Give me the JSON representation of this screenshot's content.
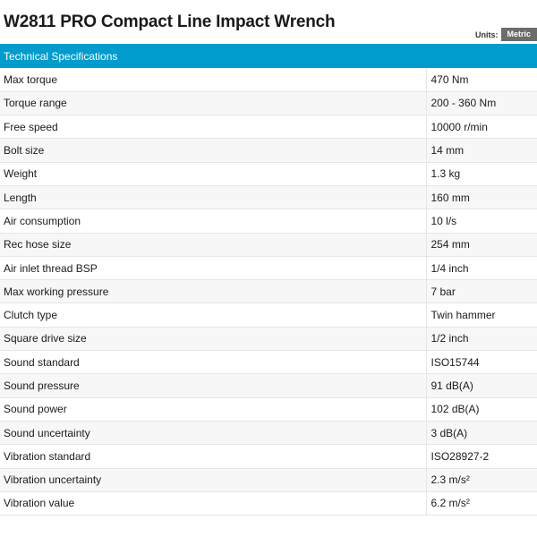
{
  "title": "W2811 PRO Compact Line Impact Wrench",
  "units": {
    "label": "Units:",
    "value": "Metric"
  },
  "section_header": "Technical Specifications",
  "specs": [
    {
      "name": "Max torque",
      "value": "470 Nm"
    },
    {
      "name": "Torque range",
      "value": "200 - 360 Nm"
    },
    {
      "name": "Free speed",
      "value": "10000 r/min"
    },
    {
      "name": "Bolt size",
      "value": "14 mm"
    },
    {
      "name": "Weight",
      "value": "1.3 kg"
    },
    {
      "name": "Length",
      "value": "160 mm"
    },
    {
      "name": "Air consumption",
      "value": "10 l/s"
    },
    {
      "name": "Rec hose size",
      "value": "254 mm"
    },
    {
      "name": "Air inlet thread BSP",
      "value": "1/4 inch"
    },
    {
      "name": "Max working pressure",
      "value": "7 bar"
    },
    {
      "name": "Clutch type",
      "value": "Twin hammer"
    },
    {
      "name": "Square drive size",
      "value": "1/2 inch"
    },
    {
      "name": "Sound standard",
      "value": "ISO15744"
    },
    {
      "name": "Sound pressure",
      "value": "91 dB(A)"
    },
    {
      "name": "Sound power",
      "value": "102 dB(A)"
    },
    {
      "name": "Sound uncertainty",
      "value": "3 dB(A)"
    },
    {
      "name": "Vibration standard",
      "value": "ISO28927-2"
    },
    {
      "name": "Vibration uncertainty",
      "value": "2.3 m/s²"
    },
    {
      "name": "Vibration value",
      "value": "6.2 m/s²"
    }
  ]
}
